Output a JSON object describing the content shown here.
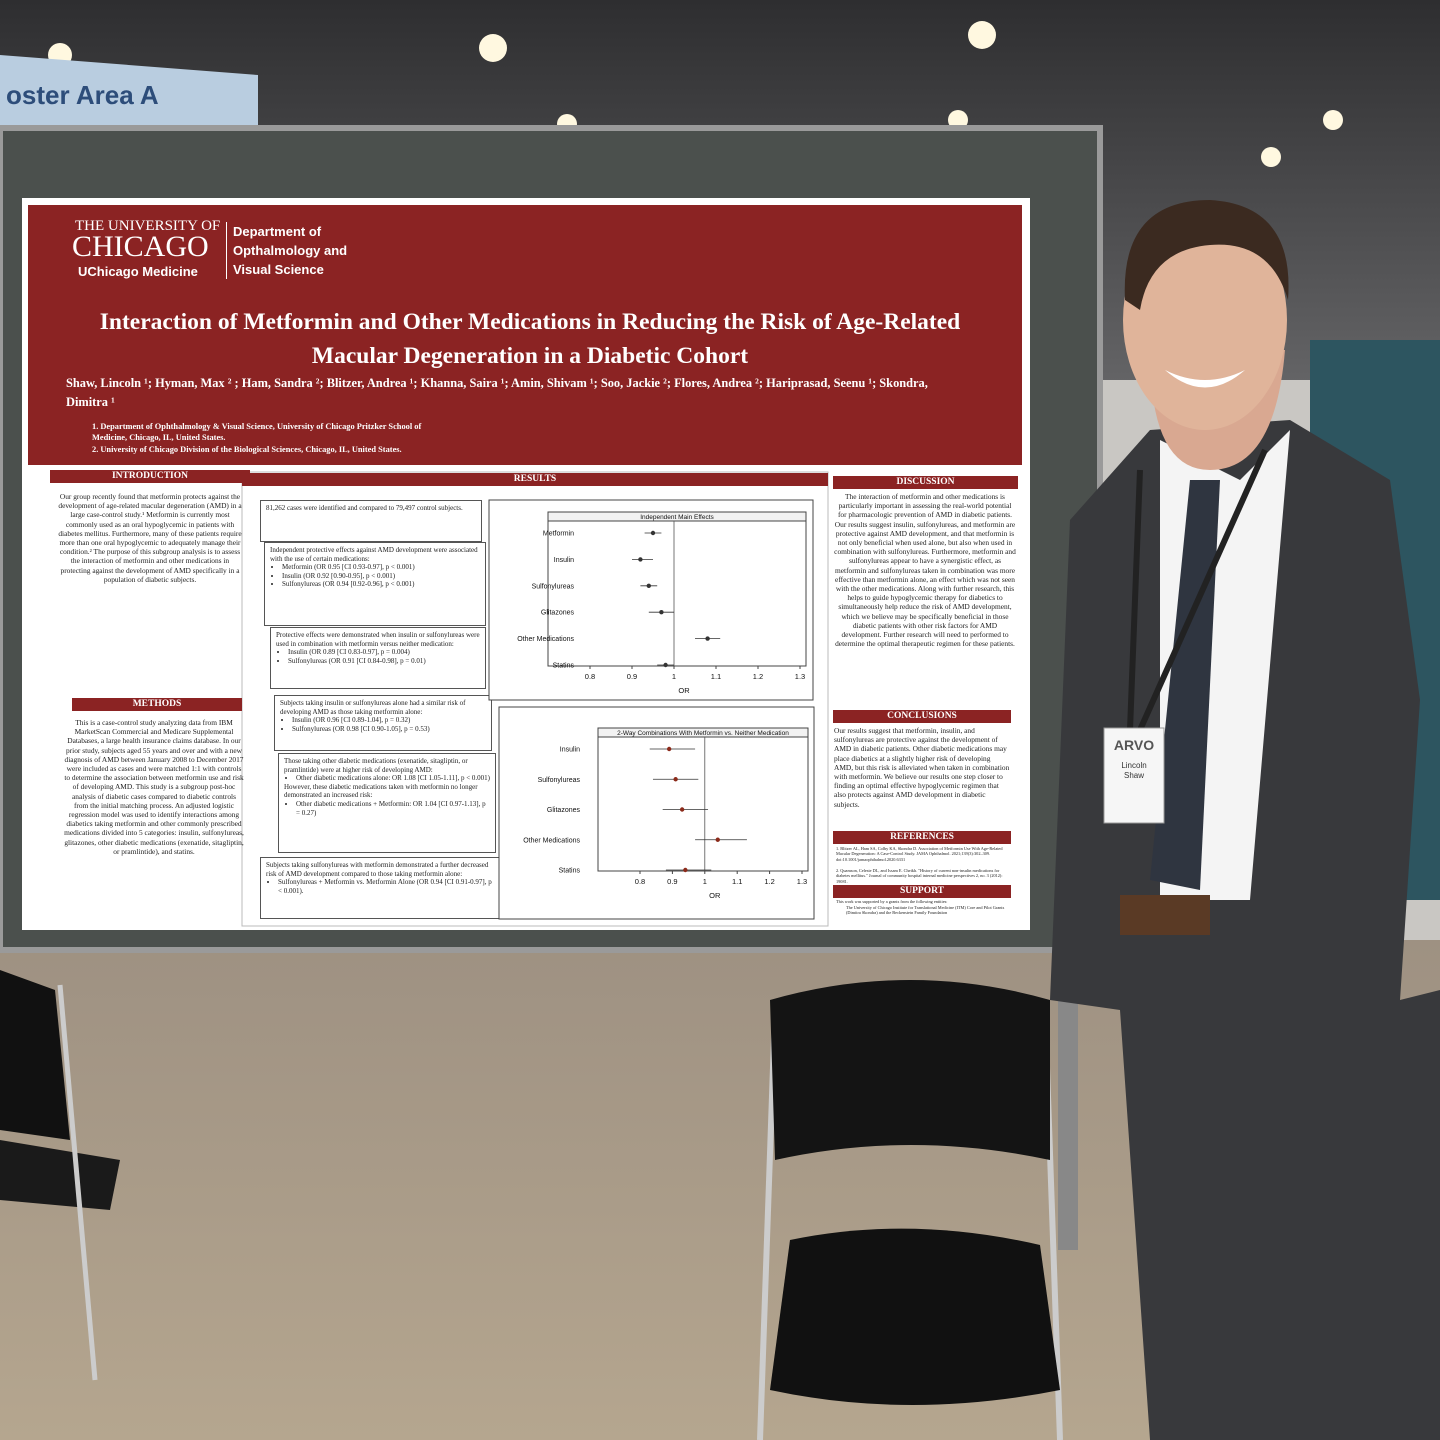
{
  "sign": "oster Area A",
  "poster": {
    "header": {
      "university": "THE UNIVERSITY OF",
      "chicago": "CHICAGO",
      "medicine": "UChicago Medicine",
      "department": "Department of Opthalmology and Visual Science"
    },
    "title": "Interaction of Metformin and Other Medications in Reducing the Risk of Age-Related Macular Degeneration in a Diabetic Cohort",
    "authors": "Shaw, Lincoln ¹; Hyman, Max ² ; Ham, Sandra ²; Blitzer, Andrea ¹; Khanna, Saira ¹; Amin, Shivam ¹; Soo, Jackie ²; Flores, Andrea ²; Hariprasad, Seenu ¹; Skondra, Dimitra ¹",
    "affiliations": [
      "1. Department of Ophthalmology & Visual Science, University of Chicago Pritzker School of Medicine, Chicago, IL, United States.",
      "2. University of Chicago Division of the Biological Sciences, Chicago, IL, United States."
    ],
    "introduction": {
      "heading": "INTRODUCTION",
      "text": "Our group recently found that metformin protects against the development of age-related macular degeneration (AMD) in a large case-control study.¹ Metformin is currently most commonly used as an oral hypoglycemic in patients with diabetes mellitus. Furthermore, many of these patients require more than one oral hypoglycemic to adequately manage their condition.² The purpose of this subgroup analysis is to assess the interaction of metformin and other medications in protecting against the development of AMD specifically in a population of diabetic subjects."
    },
    "methods": {
      "heading": "METHODS",
      "text": "This is a case-control study analyzing data from IBM MarketScan Commercial and Medicare Supplemental Databases, a large health insurance claims database. In our prior study, subjects aged 55 years and over and with a new diagnosis of AMD between January 2008 to December 2017 were included as cases and were matched 1:1 with controls to determine the association between metformin use and risk of developing AMD. This study is a subgroup post-hoc analysis of diabetic cases compared to diabetic controls from the initial matching process. An adjusted logistic regression model was used to identify interactions among diabetics taking metformin and other commonly prescribed medications divided into 5 categories: insulin, sulfonylureas, glitazones, other diabetic medications (exenatide, sitagliptin, or pramlintide), and statins."
    },
    "results": {
      "heading": "RESULTS",
      "boxes": [
        {
          "text": "81,262 cases were identified and compared to 79,497 control subjects."
        },
        {
          "text": "Independent protective effects against AMD development were associated with the use of certain medications:",
          "bullets": [
            "Metformin (OR 0.95 [CI 0.93-0.97], p < 0.001)",
            "Insulin (OR 0.92 [0.90-0.95], p < 0.001)",
            "Sulfonylureas (OR 0.94 [0.92-0.96], p < 0.001)"
          ]
        },
        {
          "text": "Protective effects were demonstrated when insulin or sulfonylureas were used in combination with metformin versus neither medication:",
          "bullets": [
            "Insulin (OR 0.89 [CI 0.83-0.97], p = 0.004)",
            "Sulfonylureas (OR 0.91 [CI 0.84-0.98], p = 0.01)"
          ]
        },
        {
          "text": "Subjects taking insulin or sulfonylureas alone had a similar risk of developing AMD as those taking metformin alone:",
          "bullets": [
            "Insulin (OR 0.96 [CI 0.89-1.04], p = 0.32)",
            "Sulfonylureas (OR 0.98 [CI 0.90-1.05], p = 0.53)"
          ]
        },
        {
          "text": "Those taking other diabetic medications (exenatide, sitagliptin, or pramlintide) were at higher risk of developing AMD:",
          "bullets": [
            "Other diabetic medications alone: OR 1.08 [CI 1.05-1.11], p < 0.001)"
          ],
          "text2": "However, these diabetic medications taken with metformin no longer demonstrated an increased risk:",
          "bullets2": [
            "Other diabetic medications + Metformin: OR 1.04 [CI 0.97-1.13], p = 0.27)"
          ]
        },
        {
          "text": "Subjects taking sulfonylureas with metformin demonstrated a further decreased risk of AMD development compared to those taking metformin alone:",
          "bullets": [
            "Sulfonylureas + Metformin vs. Metformin Alone (OR 0.94 [CI 0.91-0.97], p < 0.001)."
          ]
        }
      ]
    },
    "discussion": {
      "heading": "DISCUSSION",
      "text": "The interaction of metformin and other medications is particularly important in assessing the real-world potential for pharmacologic prevention of AMD in diabetic patients. Our results suggest insulin, sulfonylureas, and metformin are protective against AMD development, and that metformin is not only beneficial when used alone, but also when used in combination with sulfonylureas. Furthermore, metformin and sulfonylureas appear to have a synergistic effect, as metformin and sulfonylureas taken in combination was more effective than metformin alone, an effect which was not seen with the other medications. Along with further research, this helps to guide hypoglycemic therapy for diabetics to simultaneously help reduce the risk of AMD development, which we believe may be specifically beneficial in those diabetic patients with other risk factors for AMD development. Further research will need to performed to determine the optimal therapeutic regimen for these patients."
    },
    "conclusions": {
      "heading": "CONCLUSIONS",
      "text": "Our results suggest that metformin, insulin, and sulfonylureas are protective against the development of AMD in diabetic patients. Other diabetic medications may place diabetics at a slightly higher risk of developing AMD, but this risk is alleviated when taken in combination with metformin. We believe our results one step closer to finding an optimal effective hypoglycemic regimen that also protects against AMD development in diabetic subjects."
    },
    "references": {
      "heading": "REFERENCES",
      "items": [
        "1. Blitzer AL, Ham SA, Colby KA, Skondra D. Association of Metformin Use With Age-Related Macular Degeneration: A Case-Control Study. JAMA Ophthalmol. 2021;139(3):302–309. doi:10.1001/jamaophthalmol.2020.6331",
        "2. Quamson, Celeste DL, and Issam E. Cheikh. \"History of current non-insulin medications for diabetes mellitus.\" Journal of community hospital internal medicine perspectives 2, no. 3 (2012): 19081."
      ]
    },
    "support": {
      "heading": "SUPPORT",
      "text": "This work was supported by a grants from the following entities:",
      "bullets": [
        "The University of Chicago Institute for Translational Medicine (ITM) Core and Pilot Grants (Dimitra Skondra) and the Beckenstein Family Foundation"
      ]
    }
  },
  "chart_data": [
    {
      "type": "forest",
      "title": "Independent Main Effects",
      "categories": [
        "Metformin",
        "Insulin",
        "Sulfonylureas",
        "Glitazones",
        "Other Medications",
        "Statins"
      ],
      "values": [
        0.95,
        0.92,
        0.94,
        0.97,
        1.08,
        0.98
      ],
      "lower": [
        0.93,
        0.9,
        0.92,
        0.94,
        1.05,
        0.96
      ],
      "upper": [
        0.97,
        0.95,
        0.96,
        1.0,
        1.11,
        1.0
      ],
      "color": "#333333",
      "xlim": [
        0.8,
        1.3
      ],
      "xticks": [
        0.8,
        0.9,
        1,
        1.1,
        1.2,
        1.3
      ],
      "x_label": "OR"
    },
    {
      "type": "forest",
      "title": "2-Way Combinations With Metformin vs. Neither Medication",
      "categories": [
        "Insulin",
        "Sulfonylureas",
        "Glitazones",
        "Other Medications",
        "Statins"
      ],
      "values": [
        0.89,
        0.91,
        0.93,
        1.04,
        0.94
      ],
      "lower": [
        0.83,
        0.84,
        0.87,
        0.97,
        0.88
      ],
      "upper": [
        0.97,
        0.98,
        1.01,
        1.13,
        1.02
      ],
      "color": "#8b2a1a",
      "xlim": [
        0.8,
        1.3
      ],
      "xticks": [
        0.8,
        0.9,
        1,
        1.1,
        1.2,
        1.3
      ],
      "x_label": "OR"
    }
  ],
  "badge": {
    "brand": "ARVO",
    "first": "Lincoln",
    "last": "Shaw"
  }
}
